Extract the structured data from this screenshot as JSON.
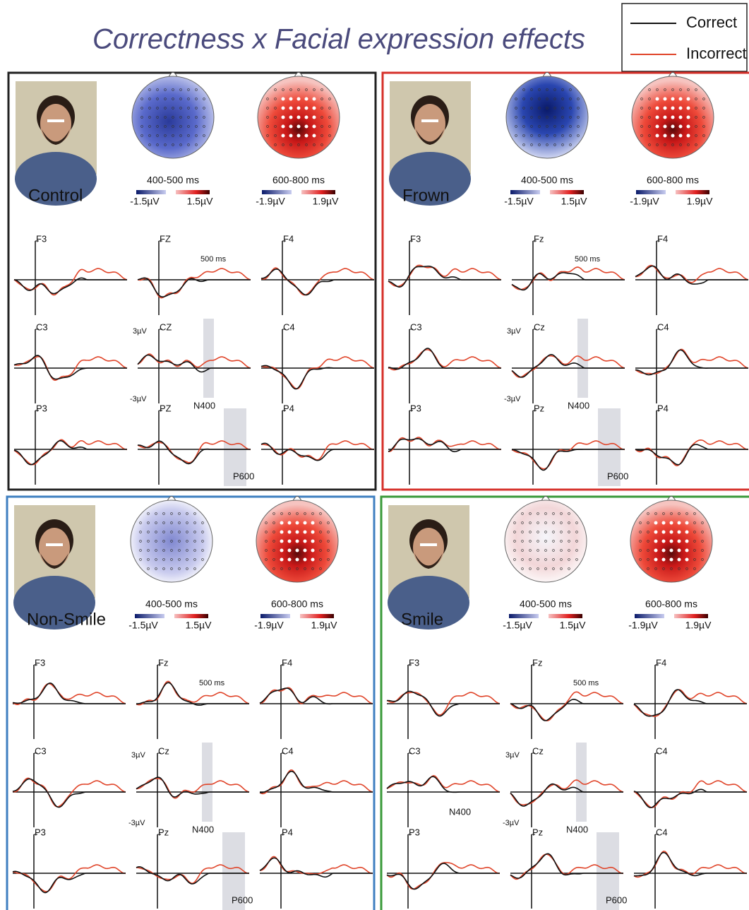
{
  "title": "Correctness x Facial expression effects",
  "legend": [
    {
      "label": "Correct",
      "color": "#111111"
    },
    {
      "label": "Incorrect",
      "color": "#e0452a"
    }
  ],
  "panels": [
    {
      "label": "Control",
      "border": "#222222",
      "maps": [
        {
          "time": "400-500 ms",
          "scale_min": "-1.5µV",
          "scale_max": "1.5µV"
        },
        {
          "time": "600-800 ms",
          "scale_min": "-1.9µV",
          "scale_max": "1.9µV"
        }
      ],
      "electrodes": [
        "F3",
        "FZ",
        "F4",
        "C3",
        "CZ",
        "C4",
        "P3",
        "PZ",
        "P4"
      ],
      "annotations": {
        "latency": "500 ms",
        "amp_max": "3µV",
        "amp_min": "-3µV",
        "n400": "N400",
        "p600": "P600"
      }
    },
    {
      "label": "Frown",
      "border": "#d6302a",
      "maps": [
        {
          "time": "400-500 ms",
          "scale_min": "-1.5µV",
          "scale_max": "1.5µV"
        },
        {
          "time": "600-800 ms",
          "scale_min": "-1.9µV",
          "scale_max": "1.9µV"
        }
      ],
      "electrodes": [
        "F3",
        "Fz",
        "F4",
        "C3",
        "Cz",
        "C4",
        "P3",
        "Pz",
        "P4"
      ],
      "annotations": {
        "latency": "500 ms",
        "amp_max": "3µV",
        "amp_min": "-3µV",
        "n400": "N400",
        "p600": "P600"
      }
    },
    {
      "label": "Non-Smile",
      "border": "#3f7fc0",
      "maps": [
        {
          "time": "400-500 ms",
          "scale_min": "-1.5µV",
          "scale_max": "1.5µV"
        },
        {
          "time": "600-800 ms",
          "scale_min": "-1.9µV",
          "scale_max": "1.9µV"
        }
      ],
      "electrodes": [
        "F3",
        "Fz",
        "F4",
        "C3",
        "Cz",
        "C4",
        "P3",
        "Pz",
        "P4"
      ],
      "annotations": {
        "latency": "500 ms",
        "amp_max": "3µV",
        "amp_min": "-3µV",
        "n400": "N400",
        "p600": "P600"
      }
    },
    {
      "label": "Smile",
      "border": "#3a9a3a",
      "maps": [
        {
          "time": "400-500 ms",
          "scale_min": "-1.5µV",
          "scale_max": "1.5µV"
        },
        {
          "time": "600-800 ms",
          "scale_min": "-1.9µV",
          "scale_max": "1.9µV"
        }
      ],
      "electrodes": [
        "F3",
        "Fz",
        "F4",
        "C3",
        "Cz",
        "C4",
        "P3",
        "Pz",
        "C4"
      ],
      "annotations": {
        "latency": "500 ms",
        "amp_max": "3µV",
        "amp_min": "-3µV",
        "n400": "N400",
        "p600": "P600",
        "n400_c3": "N400"
      }
    }
  ]
}
